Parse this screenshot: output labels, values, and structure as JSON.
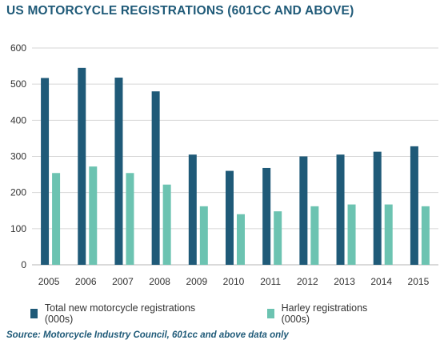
{
  "chart_data": {
    "type": "bar",
    "title": "US MOTORCYCLE REGISTRATIONS (601CC AND ABOVE)",
    "categories": [
      "2005",
      "2006",
      "2007",
      "2008",
      "2009",
      "2010",
      "2011",
      "2012",
      "2013",
      "2014",
      "2015"
    ],
    "series": [
      {
        "name": "Total new motorcycle registrations (000s)",
        "color": "#1f5a78",
        "values": [
          517,
          545,
          518,
          480,
          305,
          260,
          268,
          300,
          305,
          313,
          328
        ]
      },
      {
        "name": "Harley registrations (000s)",
        "color": "#6cc3b1",
        "values": [
          254,
          272,
          254,
          222,
          162,
          140,
          148,
          162,
          167,
          167,
          162
        ]
      }
    ],
    "ylim": [
      0,
      600
    ],
    "yticks": [
      0,
      100,
      200,
      300,
      400,
      500,
      600
    ],
    "grid": true,
    "legend": "bottom",
    "source": "Source: Motorcycle Industry Council, 601cc and above data only"
  }
}
